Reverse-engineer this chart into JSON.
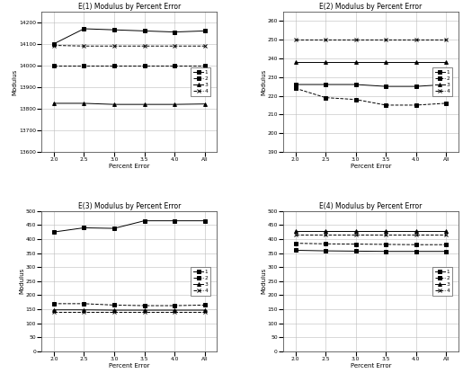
{
  "x_labels": [
    "2.0",
    "2.5",
    "3.0",
    "3.5",
    "4.0",
    "All"
  ],
  "x_vals": [
    0,
    1,
    2,
    3,
    4,
    5
  ],
  "e1": {
    "title": "E(1) Modulus by Percent Error",
    "ylabel": "Modulus",
    "xlabel": "Percent Error",
    "ylim": [
      13600,
      14250
    ],
    "yticks": [
      13600,
      13700,
      13800,
      13900,
      14000,
      14100,
      14200
    ],
    "series": {
      "1": [
        14100,
        14170,
        14165,
        14160,
        14155,
        14160
      ],
      "2": [
        14000,
        14000,
        14000,
        14000,
        14000,
        14000
      ],
      "3": [
        13825,
        13825,
        13820,
        13820,
        13820,
        13822
      ],
      "4": [
        14093,
        14090,
        14090,
        14090,
        14090,
        14090
      ]
    },
    "markers": {
      "1": "s",
      "2": "s",
      "3": "^",
      "4": "x"
    },
    "colors": {
      "1": "black",
      "2": "black",
      "3": "black",
      "4": "black"
    },
    "linestyles": {
      "1": "-",
      "2": "--",
      "3": "-",
      "4": "--"
    }
  },
  "e2": {
    "title": "E(2) Modulus by Percent Error",
    "ylabel": "Modulus",
    "xlabel": "Percent Error",
    "ylim": [
      190,
      265
    ],
    "yticks": [
      190,
      200,
      210,
      220,
      230,
      240,
      250,
      260
    ],
    "series": {
      "1": [
        226,
        226,
        226,
        225,
        225,
        226
      ],
      "2": [
        224,
        219,
        218,
        215,
        215,
        216
      ],
      "3": [
        238,
        238,
        238,
        238,
        238,
        238
      ],
      "4": [
        250,
        250,
        250,
        250,
        250,
        250
      ]
    },
    "markers": {
      "1": "s",
      "2": "s",
      "3": "^",
      "4": "x"
    },
    "colors": {
      "1": "black",
      "2": "black",
      "3": "black",
      "4": "black"
    },
    "linestyles": {
      "1": "-",
      "2": "--",
      "3": "-",
      "4": "--"
    }
  },
  "e3": {
    "title": "E(3) Modulus by Percent Error",
    "ylabel": "Modulus",
    "xlabel": "Percent Error",
    "ylim": [
      0,
      500
    ],
    "yticks": [
      0,
      50,
      100,
      150,
      200,
      250,
      300,
      350,
      400,
      450,
      500
    ],
    "series": {
      "1": [
        425,
        440,
        438,
        465,
        465,
        465
      ],
      "2": [
        170,
        170,
        165,
        163,
        163,
        165
      ],
      "3": [
        148,
        148,
        147,
        147,
        147,
        147
      ],
      "4": [
        140,
        140,
        140,
        140,
        140,
        140
      ]
    },
    "markers": {
      "1": "s",
      "2": "s",
      "3": "^",
      "4": "x"
    },
    "colors": {
      "1": "black",
      "2": "black",
      "3": "black",
      "4": "black"
    },
    "linestyles": {
      "1": "-",
      "2": "--",
      "3": "-",
      "4": "--"
    }
  },
  "e4": {
    "title": "E(4) Modulus by Percent Error",
    "ylabel": "Modulus",
    "xlabel": "Percent Error",
    "ylim": [
      0,
      500
    ],
    "yticks": [
      0,
      50,
      100,
      150,
      200,
      250,
      300,
      350,
      400,
      450,
      500
    ],
    "series": {
      "1": [
        360,
        358,
        357,
        356,
        356,
        356
      ],
      "2": [
        385,
        383,
        382,
        381,
        380,
        380
      ],
      "3": [
        430,
        430,
        430,
        430,
        430,
        430
      ],
      "4": [
        415,
        415,
        415,
        415,
        415,
        415
      ]
    },
    "markers": {
      "1": "s",
      "2": "s",
      "3": "^",
      "4": "x"
    },
    "colors": {
      "1": "black",
      "2": "black",
      "3": "black",
      "4": "black"
    },
    "linestyles": {
      "1": "-",
      "2": "--",
      "3": "-",
      "4": "--"
    }
  },
  "bg_color": "#ffffff",
  "plot_bg": "#ffffff",
  "panel_bg": "#e8e8e8"
}
